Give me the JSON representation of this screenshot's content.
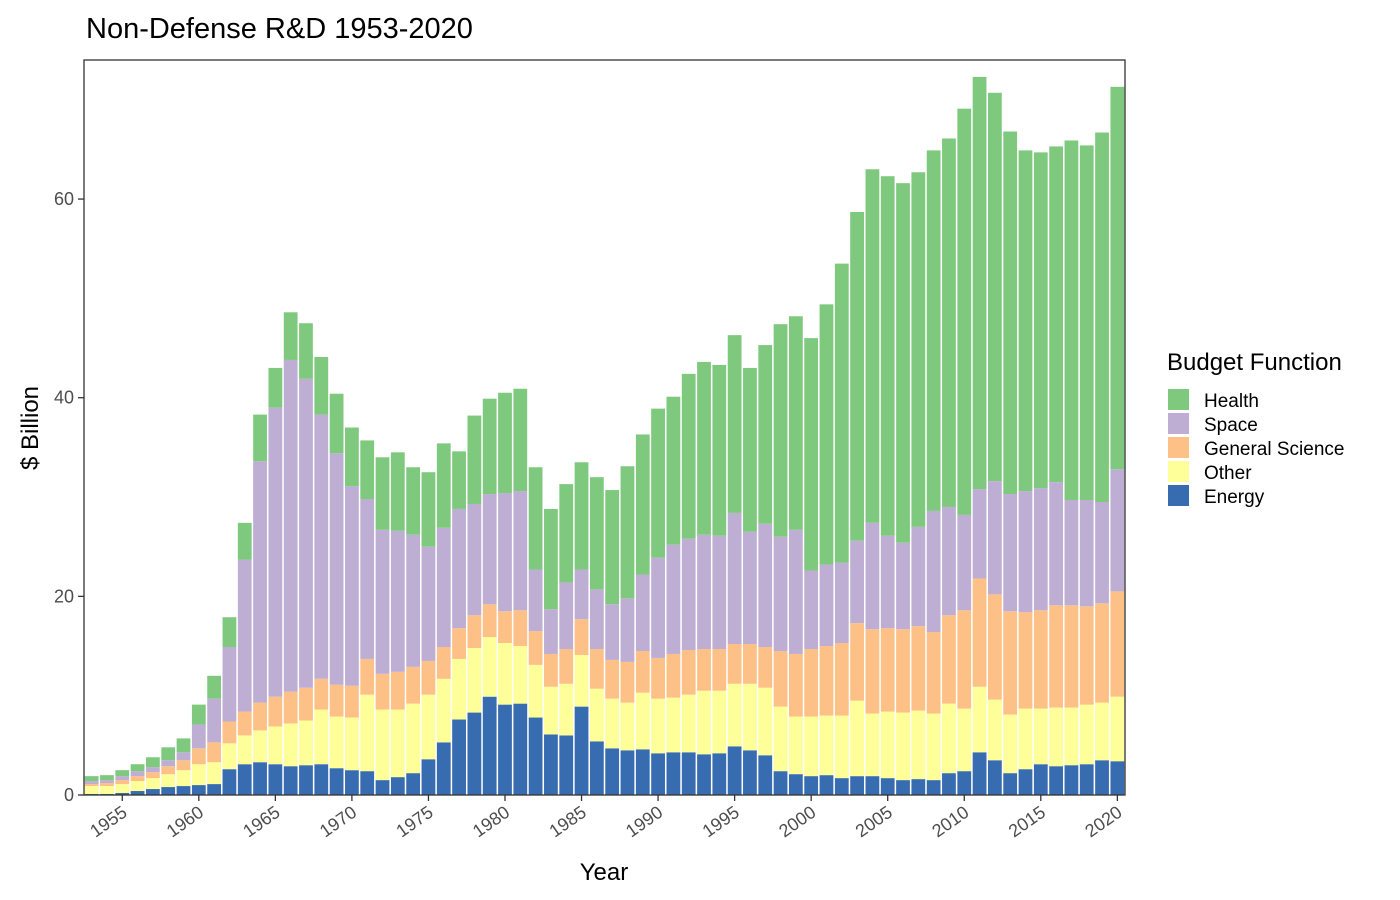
{
  "chart_data": {
    "type": "bar",
    "stacked": true,
    "title": "Non-Defense R&D 1953-2020",
    "xlabel": "Year",
    "ylabel": "$ Billion",
    "ylim": [
      0,
      74
    ],
    "yticks": [
      0,
      20,
      40,
      60
    ],
    "xticks": [
      1955,
      1960,
      1965,
      1970,
      1975,
      1980,
      1985,
      1990,
      1995,
      2000,
      2005,
      2010,
      2015,
      2020
    ],
    "grid": false,
    "legend": {
      "title": "Budget Function",
      "placement": "right",
      "entries": [
        "Health",
        "Space",
        "General Science",
        "Other",
        "Energy"
      ]
    },
    "categories": [
      1953,
      1954,
      1955,
      1956,
      1957,
      1958,
      1959,
      1960,
      1961,
      1962,
      1963,
      1964,
      1965,
      1966,
      1967,
      1968,
      1969,
      1970,
      1971,
      1972,
      1973,
      1974,
      1975,
      1976,
      1977,
      1978,
      1979,
      1980,
      1981,
      1982,
      1983,
      1984,
      1985,
      1986,
      1987,
      1988,
      1989,
      1990,
      1991,
      1992,
      1993,
      1994,
      1995,
      1996,
      1997,
      1998,
      1999,
      2000,
      2001,
      2002,
      2003,
      2004,
      2005,
      2006,
      2007,
      2008,
      2009,
      2010,
      2011,
      2012,
      2013,
      2014,
      2015,
      2016,
      2017,
      2018,
      2019,
      2020
    ],
    "series": [
      {
        "name": "Energy",
        "color": "#386cb0",
        "values": [
          0.1,
          0.1,
          0.2,
          0.4,
          0.6,
          0.8,
          0.9,
          1.0,
          1.1,
          2.6,
          3.1,
          3.3,
          3.1,
          2.9,
          3.0,
          3.1,
          2.7,
          2.5,
          2.4,
          1.5,
          1.8,
          2.2,
          3.6,
          5.3,
          7.6,
          8.3,
          9.9,
          9.1,
          9.2,
          7.8,
          6.1,
          6.0,
          8.9,
          5.4,
          4.7,
          4.5,
          4.6,
          4.2,
          4.3,
          4.3,
          4.1,
          4.2,
          4.9,
          4.5,
          4.0,
          2.4,
          2.1,
          1.9,
          2.0,
          1.7,
          1.9,
          1.9,
          1.7,
          1.5,
          1.6,
          1.5,
          2.2,
          2.4,
          4.3,
          3.5,
          2.2,
          2.6,
          3.1,
          2.9,
          3.0,
          3.1,
          3.5,
          3.4
        ]
      },
      {
        "name": "Other",
        "color": "#ffff99",
        "values": [
          0.8,
          0.8,
          0.9,
          1.0,
          1.1,
          1.3,
          1.6,
          2.1,
          2.2,
          2.6,
          2.9,
          3.2,
          3.8,
          4.3,
          4.5,
          5.5,
          5.2,
          5.3,
          7.7,
          7.1,
          6.8,
          7.0,
          6.5,
          6.4,
          6.1,
          6.5,
          6.0,
          6.2,
          5.8,
          5.3,
          4.8,
          5.2,
          5.2,
          5.3,
          5.0,
          4.8,
          5.7,
          5.5,
          5.5,
          5.8,
          6.4,
          6.3,
          6.3,
          6.7,
          6.8,
          6.5,
          5.8,
          6.0,
          6.0,
          6.3,
          7.6,
          6.3,
          6.7,
          6.8,
          6.9,
          6.7,
          7.0,
          6.3,
          6.6,
          6.1,
          5.9,
          6.1,
          5.6,
          5.9,
          5.8,
          6.0,
          5.8,
          6.5
        ]
      },
      {
        "name": "General Science",
        "color": "#fdc086",
        "values": [
          0.2,
          0.3,
          0.4,
          0.5,
          0.6,
          0.8,
          1.0,
          1.6,
          2.0,
          2.2,
          2.4,
          2.8,
          3.0,
          3.2,
          3.3,
          3.1,
          3.2,
          3.2,
          3.6,
          3.6,
          3.8,
          3.7,
          3.4,
          3.2,
          3.1,
          3.3,
          3.3,
          3.2,
          3.6,
          3.4,
          3.3,
          3.5,
          3.6,
          4.0,
          3.9,
          4.1,
          4.2,
          4.1,
          4.4,
          4.5,
          4.2,
          4.2,
          4.0,
          4.0,
          4.1,
          5.6,
          6.3,
          6.8,
          7.0,
          7.3,
          7.8,
          8.5,
          8.4,
          8.4,
          8.5,
          8.2,
          8.9,
          9.9,
          10.9,
          10.6,
          10.4,
          9.7,
          9.9,
          10.3,
          10.3,
          9.9,
          10.0,
          10.6
        ]
      },
      {
        "name": "Space",
        "color": "#beaed4",
        "values": [
          0.3,
          0.3,
          0.4,
          0.5,
          0.5,
          0.6,
          0.8,
          2.4,
          4.4,
          7.5,
          15.3,
          24.3,
          29.1,
          33.4,
          31.1,
          26.6,
          23.3,
          20.1,
          16.1,
          14.5,
          14.2,
          13.3,
          11.5,
          12.0,
          12.0,
          11.2,
          11.1,
          11.9,
          12.0,
          6.2,
          4.5,
          6.7,
          5.0,
          6.0,
          5.6,
          6.4,
          7.7,
          10.1,
          11.0,
          11.2,
          11.5,
          11.4,
          13.2,
          11.3,
          12.4,
          11.5,
          12.5,
          7.9,
          8.2,
          8.1,
          8.3,
          10.7,
          9.3,
          8.7,
          10.0,
          12.2,
          10.9,
          9.6,
          9.0,
          11.4,
          11.8,
          12.2,
          12.3,
          12.4,
          10.6,
          10.7,
          10.2,
          12.3
        ]
      },
      {
        "name": "Health",
        "color": "#7fc97f",
        "values": [
          0.5,
          0.5,
          0.6,
          0.7,
          1.0,
          1.3,
          1.4,
          2.0,
          2.3,
          3.0,
          3.7,
          4.7,
          4.0,
          4.8,
          5.6,
          5.8,
          6.0,
          5.9,
          5.9,
          7.3,
          7.9,
          6.8,
          7.5,
          8.5,
          5.8,
          8.9,
          9.6,
          10.1,
          10.3,
          10.3,
          10.1,
          9.9,
          10.8,
          11.3,
          11.5,
          13.3,
          14.1,
          15.0,
          14.9,
          16.6,
          17.4,
          17.2,
          17.9,
          16.5,
          18.0,
          21.4,
          21.5,
          23.4,
          26.2,
          30.1,
          33.1,
          35.6,
          36.2,
          36.2,
          35.7,
          36.3,
          37.1,
          40.9,
          41.5,
          39.1,
          36.5,
          34.3,
          33.8,
          33.8,
          36.2,
          35.7,
          37.2,
          38.5
        ]
      }
    ]
  }
}
